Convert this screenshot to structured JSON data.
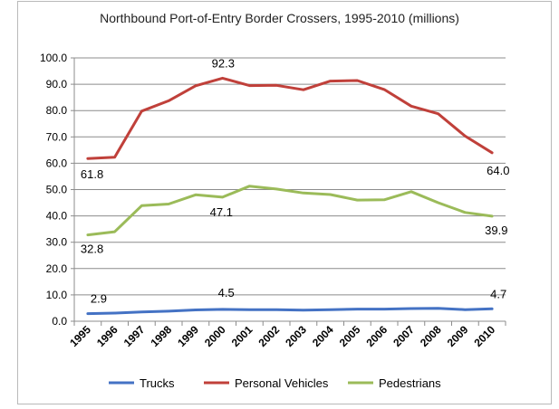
{
  "chart_data": {
    "type": "line",
    "title": "Northbound Port-of-Entry Border Crossers, 1995-2010 (millions)",
    "xlabel": "",
    "ylabel": "",
    "ylim": [
      0,
      100
    ],
    "yticks": [
      "0.0",
      "10.0",
      "20.0",
      "30.0",
      "40.0",
      "50.0",
      "60.0",
      "70.0",
      "80.0",
      "90.0",
      "100.0"
    ],
    "categories": [
      "1995",
      "1996",
      "1997",
      "1998",
      "1999",
      "2000",
      "2001",
      "2002",
      "2003",
      "2004",
      "2005",
      "2006",
      "2007",
      "2008",
      "2009",
      "2010"
    ],
    "legend_position": "bottom",
    "grid": true,
    "series": [
      {
        "name": "Trucks",
        "color": "#4472C4",
        "values": [
          2.9,
          3.1,
          3.5,
          3.8,
          4.3,
          4.5,
          4.4,
          4.4,
          4.2,
          4.4,
          4.6,
          4.6,
          4.8,
          4.9,
          4.4,
          4.7
        ]
      },
      {
        "name": "Personal Vehicles",
        "color": "#C0403A",
        "values": [
          61.8,
          62.3,
          79.8,
          83.7,
          89.4,
          92.3,
          89.5,
          89.6,
          87.9,
          91.2,
          91.4,
          88.0,
          81.7,
          78.8,
          70.3,
          64.0
        ]
      },
      {
        "name": "Pedestrians",
        "color": "#9BBB59",
        "values": [
          32.8,
          34.0,
          43.9,
          44.5,
          48.0,
          47.1,
          51.3,
          50.2,
          48.7,
          48.1,
          46.0,
          46.1,
          49.2,
          45.0,
          41.3,
          39.9
        ]
      }
    ],
    "data_labels": [
      {
        "series": 0,
        "index": 0,
        "text": "2.9"
      },
      {
        "series": 0,
        "index": 5,
        "text": "4.5"
      },
      {
        "series": 0,
        "index": 15,
        "text": "4.7"
      },
      {
        "series": 1,
        "index": 0,
        "text": "61.8"
      },
      {
        "series": 1,
        "index": 5,
        "text": "92.3"
      },
      {
        "series": 1,
        "index": 15,
        "text": "64.0"
      },
      {
        "series": 2,
        "index": 0,
        "text": "32.8"
      },
      {
        "series": 2,
        "index": 5,
        "text": "47.1"
      },
      {
        "series": 2,
        "index": 15,
        "text": "39.9"
      }
    ]
  }
}
